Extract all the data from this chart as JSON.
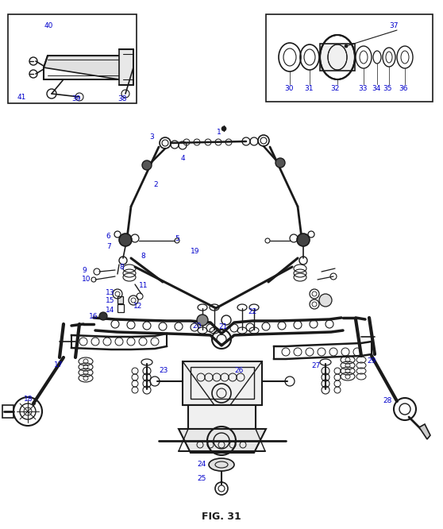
{
  "title": "FIG. 31",
  "bg_color": "#ffffff",
  "line_color": "#1a1a1a",
  "label_color": "#0000cc",
  "label_fontsize": 6.5,
  "fig_width": 5.58,
  "fig_height": 6.66,
  "dpi": 100
}
